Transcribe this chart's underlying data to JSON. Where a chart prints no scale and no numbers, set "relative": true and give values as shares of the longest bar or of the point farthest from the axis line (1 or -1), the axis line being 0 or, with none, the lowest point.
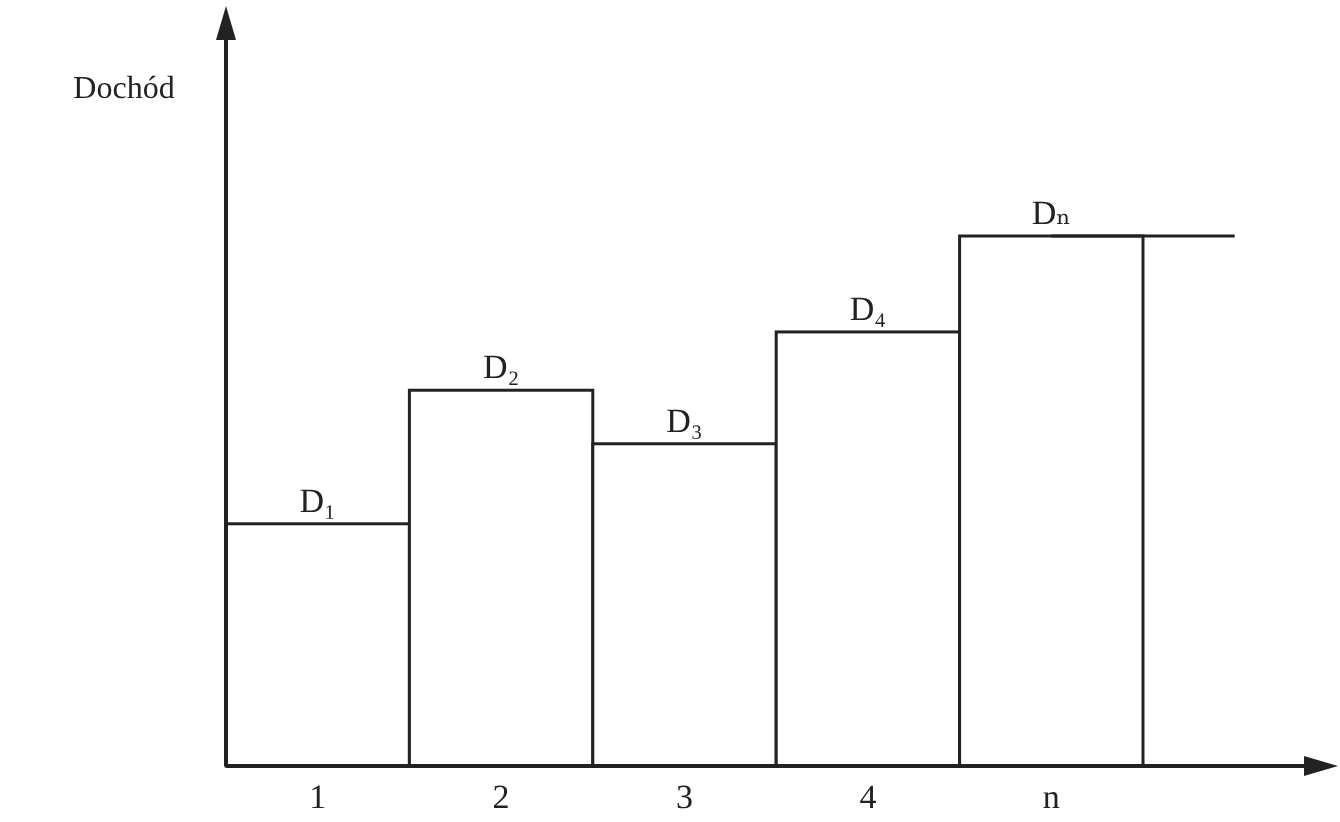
{
  "chart_data": {
    "type": "bar",
    "ylabel": "Dochód",
    "relative": true,
    "categories": [
      "1",
      "2",
      "3",
      "4",
      "n",
      null
    ],
    "series": [
      {
        "color": "#ffffff",
        "values": [
          0.457,
          0.709,
          0.608,
          0.819,
          1,
          null
        ]
      },
      {
        "type": "line",
        "color": "#222222",
        "values": [
          null,
          null,
          null,
          null,
          1,
          1
        ]
      }
    ],
    "annotations": [
      {
        "text": "D₁",
        "x": "1",
        "y": 0.457
      },
      {
        "text": "D₂",
        "x": "2",
        "y": 0.709
      },
      {
        "text": "D₃",
        "x": "3",
        "y": 0.608
      },
      {
        "text": "D₄",
        "x": "4",
        "y": 0.819
      },
      {
        "text": "Dₙ",
        "x": "n",
        "y": 1
      }
    ]
  }
}
